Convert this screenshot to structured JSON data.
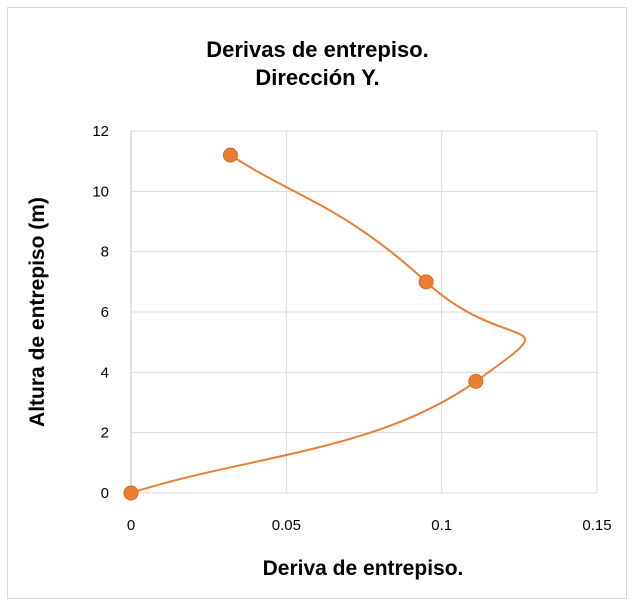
{
  "chart_data": {
    "type": "scatter",
    "title_line1": "Derivas de entrepiso.",
    "title_line2": "Dirección Y.",
    "xlabel": "Deriva de entrepiso.",
    "ylabel": "Altura de entrepiso (m)",
    "xlim": [
      0,
      0.15
    ],
    "ylim": [
      0,
      12
    ],
    "x_ticks": [
      "0",
      "0.05",
      "0.1",
      "0.15"
    ],
    "y_ticks": [
      "0",
      "2",
      "4",
      "6",
      "8",
      "10",
      "12"
    ],
    "grid": true,
    "smooth_line": true,
    "series": [
      {
        "x": [
          0,
          0.111,
          0.095,
          0.032
        ],
        "y": [
          0,
          3.7,
          7.0,
          11.2
        ]
      }
    ],
    "colors": {
      "series": "#ed7d31",
      "grid": "#d9d9d9",
      "axis": "#bfbfbf"
    }
  }
}
